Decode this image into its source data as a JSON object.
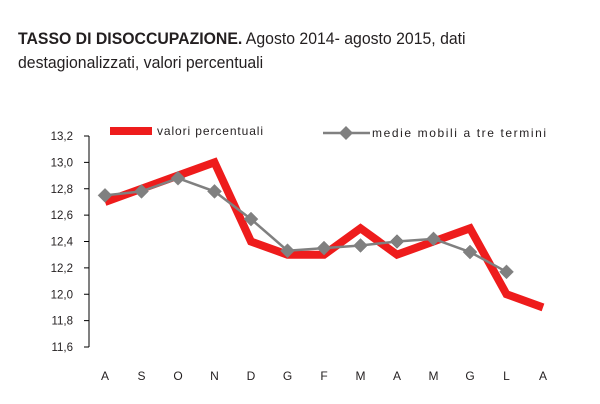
{
  "header": {
    "title_bold": "TASSO DI DISOCCUPAZIONE.",
    "title_rest": " Agosto 2014- agosto 2015, dati",
    "title_line2": "destagionalizzati, valori percentuali"
  },
  "chart_data": {
    "type": "line",
    "categories": [
      "A",
      "S",
      "O",
      "N",
      "D",
      "G",
      "F",
      "M",
      "A",
      "M",
      "G",
      "L",
      "A"
    ],
    "series": [
      {
        "name": "valori percentuali",
        "values": [
          12.7,
          12.8,
          12.9,
          13.0,
          12.4,
          12.3,
          12.3,
          12.5,
          12.3,
          12.4,
          12.5,
          12.0,
          11.9
        ],
        "color": "#ee1c1c",
        "marker": "none"
      },
      {
        "name": "medie mobili a tre termini",
        "values": [
          12.75,
          12.78,
          12.88,
          12.78,
          12.57,
          12.33,
          12.35,
          12.37,
          12.4,
          12.42,
          12.32,
          12.17,
          null
        ],
        "color": "#808080",
        "marker": "diamond"
      }
    ],
    "yticks": [
      "13,2",
      "13,0",
      "12,8",
      "12,6",
      "12,4",
      "12,2",
      "12,0",
      "11,8",
      "11,6"
    ],
    "ylim": [
      11.6,
      13.2
    ],
    "grid": false,
    "legend": "top"
  }
}
